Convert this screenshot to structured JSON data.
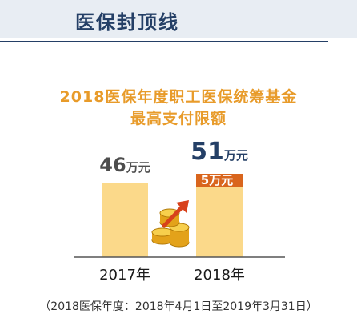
{
  "header": {
    "title": "医保封顶线"
  },
  "chart_data": {
    "type": "bar",
    "title_line1": "2018医保年度职工医保统筹基金",
    "title_line2": "最高支付限额",
    "categories": [
      "2017年",
      "2018年"
    ],
    "values": [
      46,
      51
    ],
    "value_labels": [
      {
        "number": "46",
        "unit": "万元"
      },
      {
        "number": "51",
        "unit": "万元"
      }
    ],
    "increase": {
      "value": 5,
      "label": "5万元"
    },
    "ylim": [
      0,
      51
    ],
    "legend": "none",
    "grid": false,
    "colors": {
      "bar": "#fbd98a",
      "increase": "#d9651d",
      "value_text": "#4d4d4d",
      "highlight_value_text": "#243f66",
      "axis": "#555555"
    }
  },
  "footnote": "（2018医保年度：2018年4月1日至2019年3月31日）",
  "icons": {
    "decoration": "coins-arrow-icon"
  }
}
